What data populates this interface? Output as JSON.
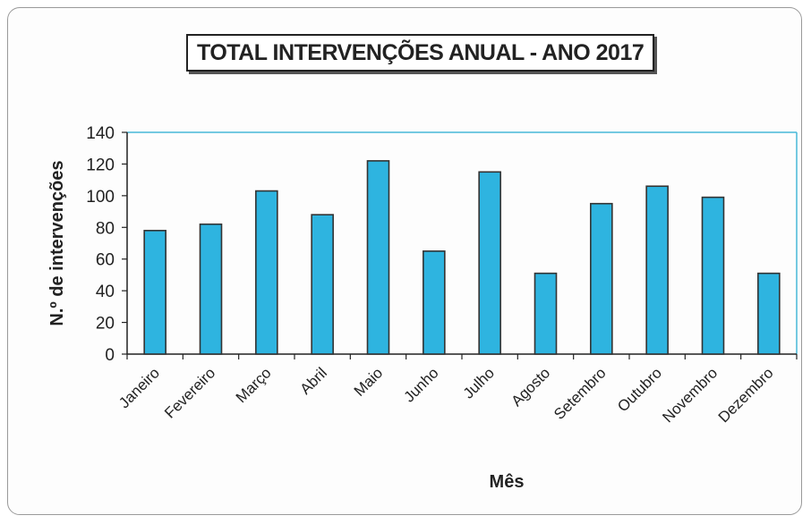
{
  "chart_data": {
    "type": "bar",
    "title": "TOTAL INTERVENÇÕES ANUAL - ANO 2017",
    "xlabel": "Mês",
    "ylabel": "N.º de intervenções",
    "categories": [
      "Janeiro",
      "Fevereiro",
      "Março",
      "Abril",
      "Maio",
      "Junho",
      "Julho",
      "Agosto",
      "Setembro",
      "Outubro",
      "Novembro",
      "Dezembro"
    ],
    "values": [
      78,
      82,
      103,
      88,
      122,
      65,
      115,
      51,
      95,
      106,
      99,
      51
    ],
    "ylim": [
      0,
      140
    ],
    "yticks": [
      "0",
      "20",
      "40",
      "60",
      "80",
      "100",
      "120",
      "140"
    ],
    "grid": false,
    "legend": "none",
    "bar_color": "#2eb4e0",
    "plot_border_color": "#46b8d8"
  }
}
